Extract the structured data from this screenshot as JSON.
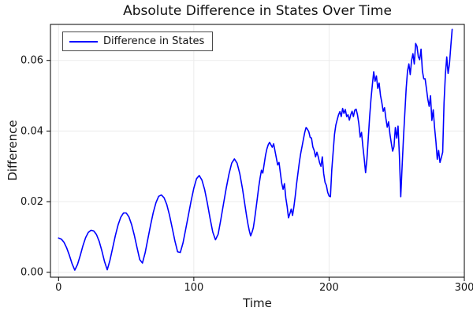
{
  "title": "Absolute Difference in States Over Time",
  "legend": {
    "label": "Difference in States"
  },
  "colors": {
    "line": "#0000ff",
    "grid": "#ebebeb",
    "frame": "#000000",
    "tick_label": "#151515",
    "title": "#111111"
  },
  "chart_data": {
    "type": "line",
    "title": "Absolute Difference in States Over Time",
    "xlabel": "Time",
    "ylabel": "Difference",
    "legend_position": "top-left",
    "grid": true,
    "series_name": "Difference in States",
    "line_color": "#0000ff",
    "xlim": [
      -6,
      300
    ],
    "ylim": [
      -0.0014,
      0.0702
    ],
    "xticks": [
      {
        "v": 0,
        "label": "0"
      },
      {
        "v": 100,
        "label": "100"
      },
      {
        "v": 200,
        "label": "200"
      },
      {
        "v": 300,
        "label": "300"
      }
    ],
    "yticks": [
      {
        "v": 0.0,
        "label": "0.00"
      },
      {
        "v": 0.02,
        "label": "0.02"
      },
      {
        "v": 0.04,
        "label": "0.04"
      },
      {
        "v": 0.06,
        "label": "0.06"
      }
    ],
    "points": {
      "t": [
        0,
        2,
        4,
        6,
        8,
        10,
        12,
        14,
        16,
        18,
        20,
        22,
        24,
        26,
        28,
        30,
        32,
        34,
        36,
        38,
        40,
        42,
        44,
        46,
        48,
        50,
        52,
        54,
        56,
        58,
        60,
        62,
        64,
        66,
        68,
        70,
        72,
        74,
        76,
        78,
        80,
        82,
        84,
        86,
        88,
        90,
        92,
        94,
        96,
        98,
        100,
        102,
        104,
        106,
        108,
        110,
        112,
        114,
        116,
        118,
        120,
        122,
        124,
        126,
        128,
        130,
        132,
        134,
        136,
        138,
        139,
        140,
        141,
        142,
        143,
        144,
        145,
        146,
        147,
        148,
        149,
        150,
        151,
        152,
        153,
        154,
        155,
        156,
        157,
        158,
        159,
        160,
        161,
        162,
        163,
        164,
        165,
        166,
        167,
        168,
        169,
        170,
        171,
        172,
        173,
        174,
        175,
        176,
        177,
        178,
        179,
        180,
        181,
        182,
        183,
        184,
        185,
        186,
        187,
        188,
        189,
        190,
        191,
        192,
        193,
        194,
        195,
        196,
        197,
        198,
        199,
        200,
        201,
        202,
        203,
        204,
        205,
        206,
        207,
        208,
        209,
        210,
        211,
        212,
        213,
        214,
        215,
        216,
        217,
        218,
        219,
        220,
        221,
        222,
        223,
        224,
        225,
        226,
        227,
        228,
        229,
        230,
        231,
        232,
        233,
        234,
        235,
        236,
        237,
        238,
        239,
        240,
        241,
        242,
        243,
        244,
        245,
        246,
        247,
        248,
        249,
        250,
        251,
        252,
        253,
        254,
        255,
        256,
        257,
        258,
        259,
        260,
        261,
        262,
        263,
        264,
        265,
        266,
        267,
        268,
        269,
        270,
        271,
        272,
        273,
        274,
        275,
        276,
        277,
        278,
        279,
        280,
        281,
        282,
        283,
        284,
        285,
        286,
        287,
        288,
        289,
        290,
        291
      ],
      "y": [
        0.0097,
        0.0094,
        0.0085,
        0.0069,
        0.0048,
        0.0024,
        0.0006,
        0.0022,
        0.0047,
        0.0075,
        0.0098,
        0.0113,
        0.0119,
        0.0117,
        0.0107,
        0.0088,
        0.0061,
        0.003,
        0.0007,
        0.0034,
        0.0069,
        0.0104,
        0.0134,
        0.0156,
        0.0168,
        0.0168,
        0.0157,
        0.0135,
        0.0105,
        0.007,
        0.0036,
        0.0026,
        0.0055,
        0.0094,
        0.0133,
        0.0169,
        0.0197,
        0.0215,
        0.0219,
        0.0211,
        0.0192,
        0.0162,
        0.0126,
        0.0089,
        0.0058,
        0.0056,
        0.0083,
        0.0122,
        0.0162,
        0.0202,
        0.0238,
        0.0265,
        0.0274,
        0.0261,
        0.0234,
        0.0196,
        0.0153,
        0.0114,
        0.0092,
        0.0108,
        0.015,
        0.0195,
        0.0239,
        0.0278,
        0.0309,
        0.0321,
        0.0309,
        0.0279,
        0.0236,
        0.0185,
        0.016,
        0.0137,
        0.0118,
        0.0103,
        0.0113,
        0.0126,
        0.0152,
        0.0181,
        0.0211,
        0.0242,
        0.0267,
        0.0289,
        0.0281,
        0.0306,
        0.0331,
        0.0349,
        0.0361,
        0.0368,
        0.0361,
        0.0354,
        0.0364,
        0.0344,
        0.0324,
        0.0304,
        0.0311,
        0.0281,
        0.0252,
        0.0235,
        0.0251,
        0.0211,
        0.0186,
        0.0154,
        0.0166,
        0.0179,
        0.0161,
        0.0186,
        0.0216,
        0.0251,
        0.0281,
        0.0311,
        0.0336,
        0.0356,
        0.0376,
        0.0396,
        0.041,
        0.0405,
        0.0398,
        0.0382,
        0.038,
        0.0355,
        0.0345,
        0.0327,
        0.034,
        0.0327,
        0.031,
        0.03,
        0.0327,
        0.028,
        0.0255,
        0.0246,
        0.0226,
        0.0216,
        0.0214,
        0.029,
        0.034,
        0.039,
        0.0417,
        0.0432,
        0.0446,
        0.0455,
        0.0441,
        0.0464,
        0.045,
        0.0461,
        0.0441,
        0.0446,
        0.0431,
        0.0446,
        0.0456,
        0.0441,
        0.0459,
        0.0462,
        0.0446,
        0.0421,
        0.0383,
        0.0396,
        0.0356,
        0.0321,
        0.0282,
        0.0321,
        0.0381,
        0.0441,
        0.0491,
        0.0531,
        0.0568,
        0.0541,
        0.0556,
        0.0521,
        0.0536,
        0.0501,
        0.0481,
        0.0456,
        0.0466,
        0.0436,
        0.0411,
        0.0426,
        0.0391,
        0.0366,
        0.0343,
        0.0356,
        0.041,
        0.038,
        0.0414,
        0.033,
        0.0214,
        0.03,
        0.038,
        0.045,
        0.052,
        0.057,
        0.059,
        0.056,
        0.06,
        0.0619,
        0.059,
        0.0648,
        0.064,
        0.061,
        0.0602,
        0.0632,
        0.057,
        0.0548,
        0.0548,
        0.052,
        0.049,
        0.047,
        0.05,
        0.043,
        0.046,
        0.041,
        0.037,
        0.032,
        0.0345,
        0.0311,
        0.0325,
        0.034,
        0.048,
        0.056,
        0.061,
        0.0563,
        0.059,
        0.064,
        0.0688
      ]
    }
  }
}
